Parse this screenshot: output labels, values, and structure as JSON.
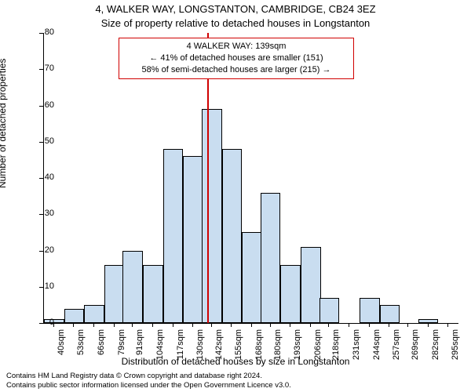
{
  "titles": {
    "main": "4, WALKER WAY, LONGSTANTON, CAMBRIDGE, CB24 3EZ",
    "sub": "Size of property relative to detached houses in Longstanton"
  },
  "axes": {
    "y_label": "Number of detached properties",
    "x_label": "Distribution of detached houses by size in Longstanton",
    "y_min": 0,
    "y_max": 80,
    "y_tick_step": 10,
    "unit_suffix": "sqm"
  },
  "footer": {
    "line1": "Contains HM Land Registry data © Crown copyright and database right 2024.",
    "line2": "Contains public sector information licensed under the Open Government Licence v3.0."
  },
  "chart": {
    "type": "histogram",
    "bar_fill": "#c9ddf0",
    "bar_border": "#000000",
    "background": "#ffffff",
    "categories": [
      40,
      53,
      66,
      79,
      91,
      104,
      117,
      130,
      142,
      155,
      168,
      180,
      193,
      206,
      218,
      231,
      244,
      257,
      269,
      282,
      295
    ],
    "values": [
      1,
      4,
      5,
      16,
      20,
      16,
      48,
      46,
      59,
      48,
      25,
      36,
      16,
      21,
      7,
      0,
      7,
      5,
      0,
      1,
      0
    ],
    "marker": {
      "position_sqm": 139,
      "color": "#d00000"
    },
    "callout": {
      "border_color": "#d00000",
      "line1": "4 WALKER WAY: 139sqm",
      "line2": "← 41% of detached houses are smaller (151)",
      "line3": "58% of semi-detached houses are larger (215) →"
    }
  },
  "style": {
    "tick_fontsize": 11,
    "label_fontsize": 12,
    "title_fontsize": 13,
    "footer_fontsize": 9.5
  }
}
